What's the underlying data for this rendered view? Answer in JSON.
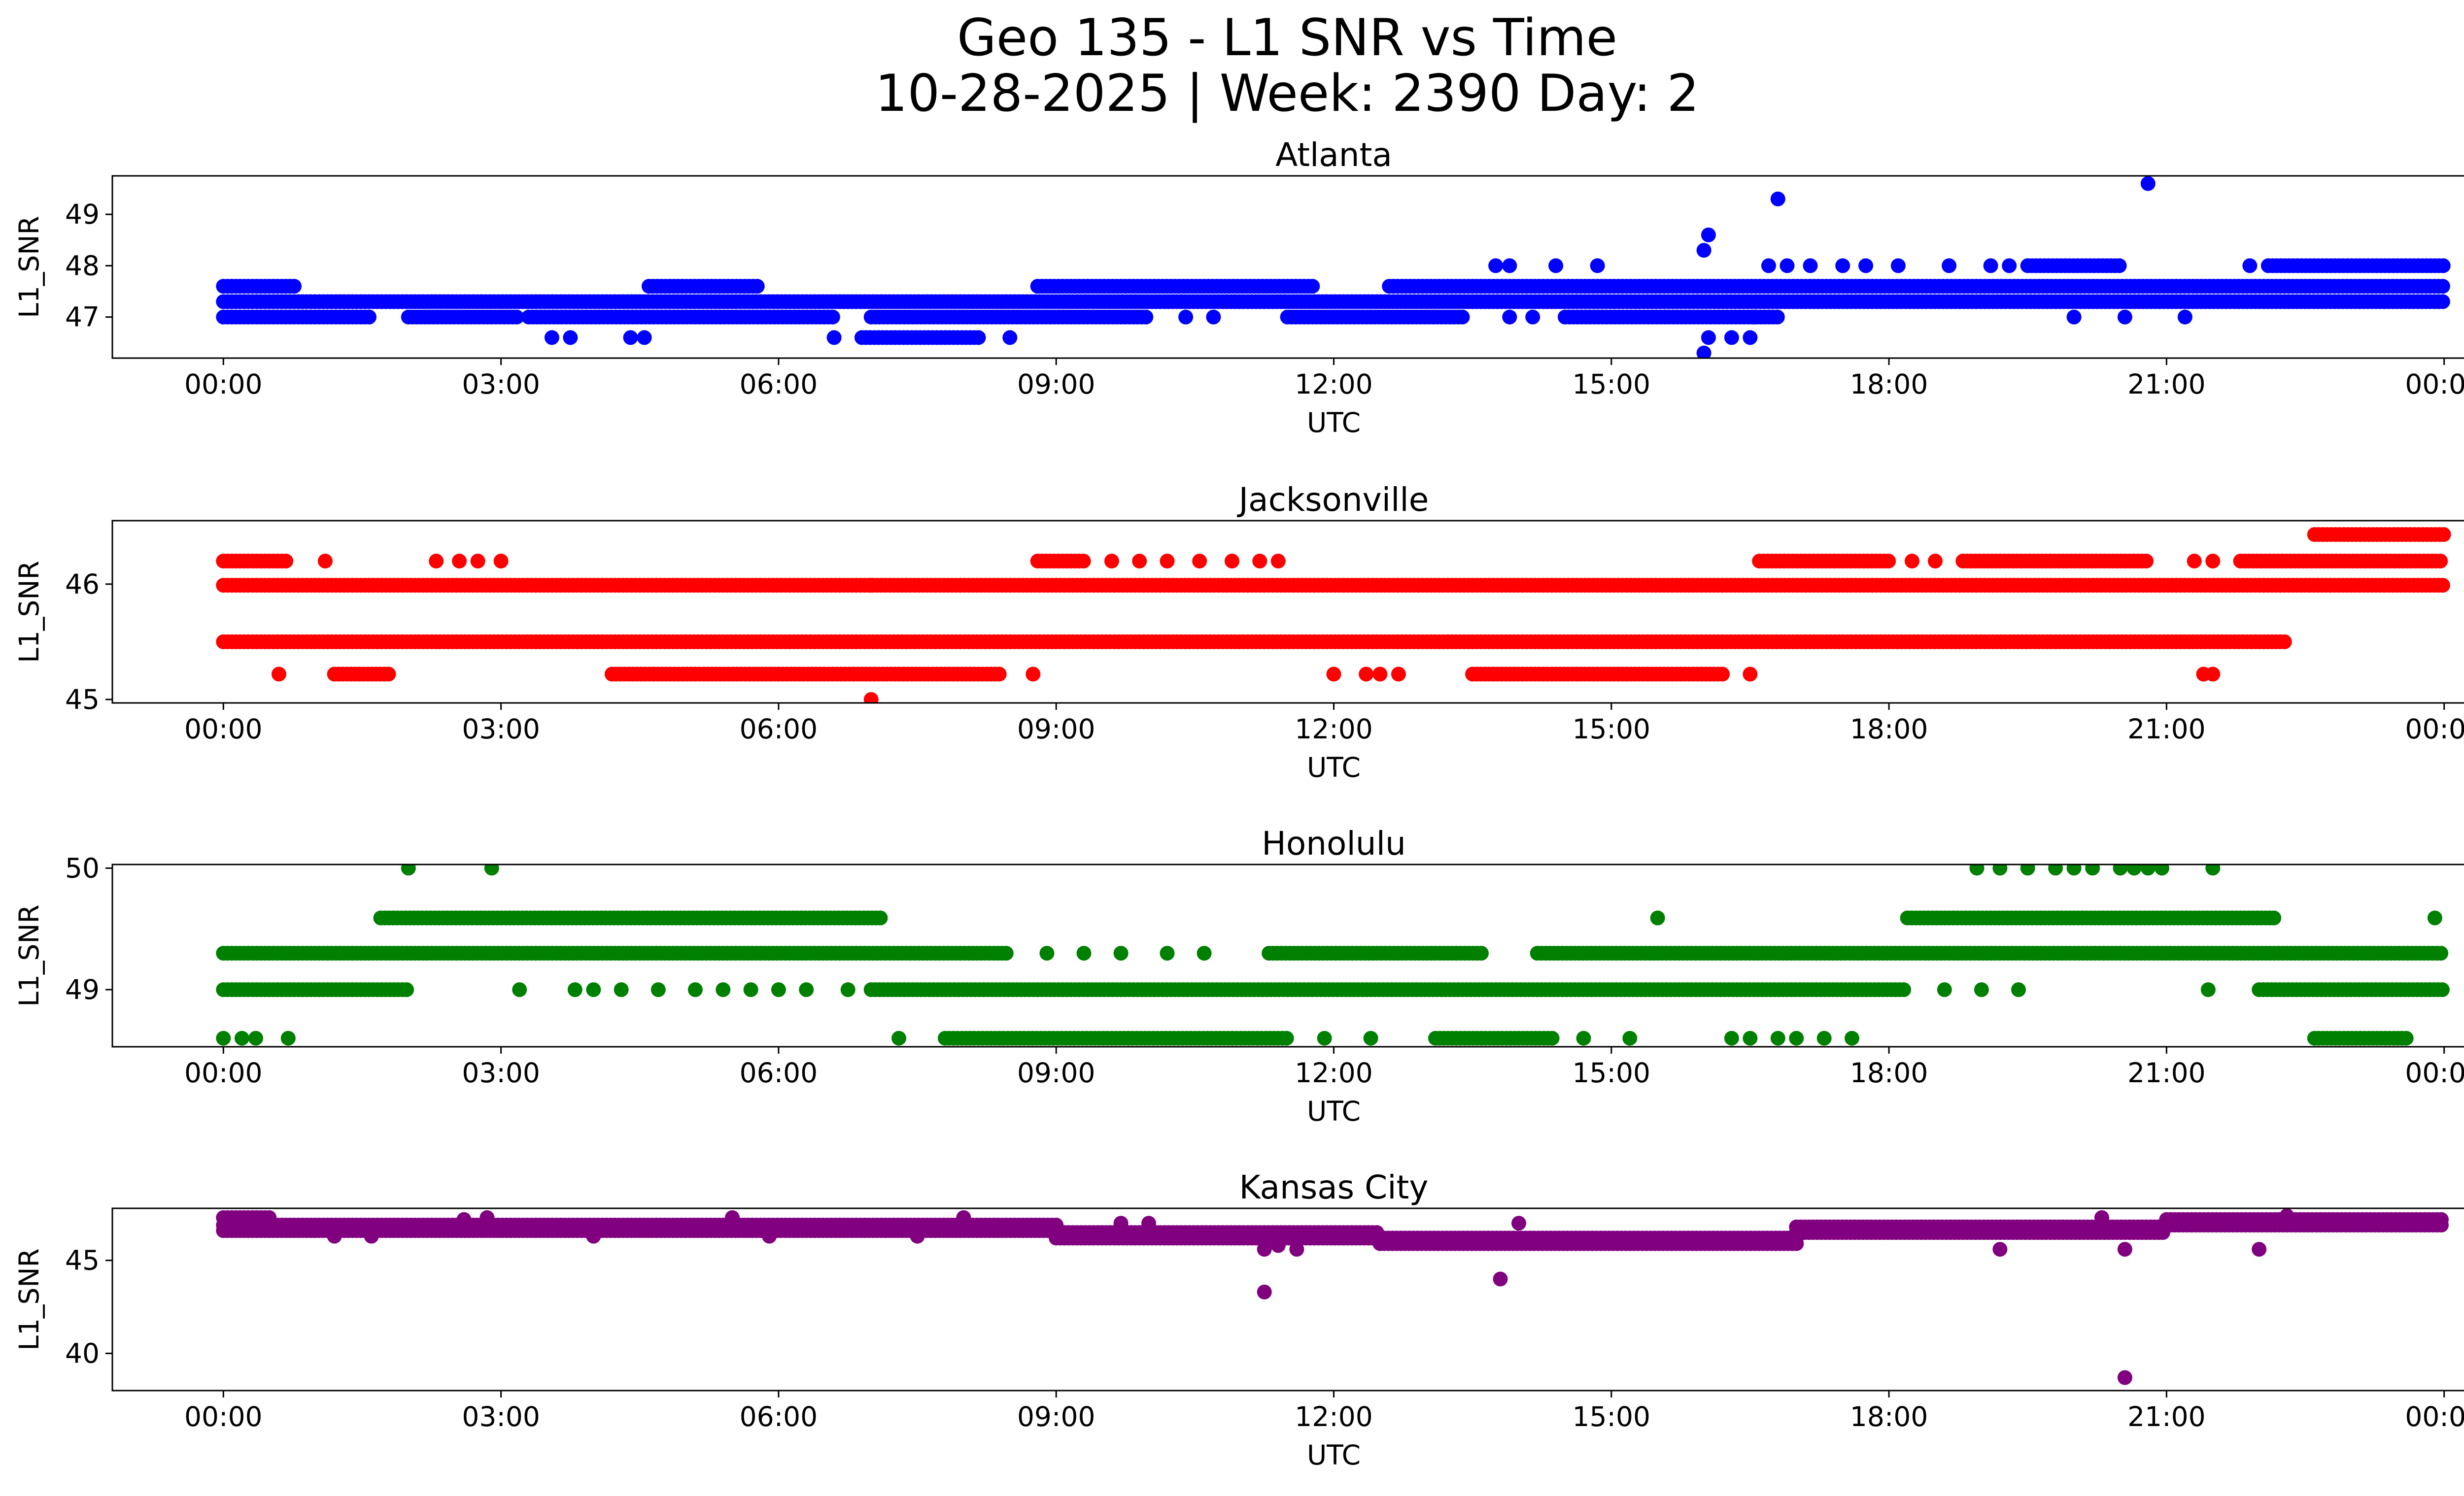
{
  "figure": {
    "title_line1": "Geo 135 - L1 SNR vs Time",
    "title_line2": "10-28-2025 | Week: 2390 Day: 2"
  },
  "chart_data": [
    {
      "type": "scatter",
      "title": "Atlanta",
      "xlabel": "UTC",
      "ylabel": "L1_SNR",
      "color": "#0000ff",
      "xlim_hours": [
        -1.2,
        25.2
      ],
      "ylim": [
        46.2,
        49.75
      ],
      "xticks": [
        {
          "h": 0,
          "label": "00:00"
        },
        {
          "h": 3,
          "label": "03:00"
        },
        {
          "h": 6,
          "label": "06:00"
        },
        {
          "h": 9,
          "label": "09:00"
        },
        {
          "h": 12,
          "label": "12:00"
        },
        {
          "h": 15,
          "label": "15:00"
        },
        {
          "h": 18,
          "label": "18:00"
        },
        {
          "h": 21,
          "label": "21:00"
        },
        {
          "h": 24,
          "label": "00:00"
        }
      ],
      "yticks": [
        {
          "v": 47,
          "label": "47"
        },
        {
          "v": 48,
          "label": "48"
        },
        {
          "v": 49,
          "label": "49"
        }
      ],
      "bands": [
        {
          "start": 0.0,
          "end": 24.0,
          "y": 47.3
        },
        {
          "start": 0.0,
          "end": 1.6,
          "y": 47.0
        },
        {
          "start": 2.0,
          "end": 3.2,
          "y": 47.0
        },
        {
          "start": 3.3,
          "end": 6.6,
          "y": 47.0
        },
        {
          "start": 7.0,
          "end": 10.0,
          "y": 47.0
        },
        {
          "start": 11.5,
          "end": 13.4,
          "y": 47.0
        },
        {
          "start": 14.5,
          "end": 16.8,
          "y": 47.0
        },
        {
          "start": 12.6,
          "end": 24.0,
          "y": 47.6
        },
        {
          "start": 8.8,
          "end": 11.8,
          "y": 47.6
        },
        {
          "start": 0.0,
          "end": 0.8,
          "y": 47.6
        },
        {
          "start": 4.6,
          "end": 5.8,
          "y": 47.6
        },
        {
          "start": 6.9,
          "end": 8.2,
          "y": 46.6
        },
        {
          "start": 19.5,
          "end": 20.5,
          "y": 48.0
        },
        {
          "start": 22.1,
          "end": 24.0,
          "y": 48.0
        }
      ],
      "points": [
        {
          "h": 3.55,
          "y": 46.6
        },
        {
          "h": 3.75,
          "y": 46.6
        },
        {
          "h": 4.4,
          "y": 46.6
        },
        {
          "h": 4.55,
          "y": 46.6
        },
        {
          "h": 6.6,
          "y": 46.6
        },
        {
          "h": 8.5,
          "y": 46.6
        },
        {
          "h": 16.0,
          "y": 46.3
        },
        {
          "h": 16.05,
          "y": 46.6
        },
        {
          "h": 16.3,
          "y": 46.6
        },
        {
          "h": 16.5,
          "y": 46.6
        },
        {
          "h": 16.55,
          "y": 47.0
        },
        {
          "h": 16.0,
          "y": 48.3
        },
        {
          "h": 16.05,
          "y": 48.6
        },
        {
          "h": 16.8,
          "y": 49.3
        },
        {
          "h": 20.8,
          "y": 49.6
        },
        {
          "h": 13.75,
          "y": 48.0
        },
        {
          "h": 13.9,
          "y": 48.0
        },
        {
          "h": 14.4,
          "y": 48.0
        },
        {
          "h": 14.85,
          "y": 48.0
        },
        {
          "h": 16.7,
          "y": 48.0
        },
        {
          "h": 16.9,
          "y": 48.0
        },
        {
          "h": 17.15,
          "y": 48.0
        },
        {
          "h": 17.5,
          "y": 48.0
        },
        {
          "h": 17.75,
          "y": 48.0
        },
        {
          "h": 18.1,
          "y": 48.0
        },
        {
          "h": 18.65,
          "y": 48.0
        },
        {
          "h": 19.1,
          "y": 48.0
        },
        {
          "h": 19.3,
          "y": 48.0
        },
        {
          "h": 21.9,
          "y": 48.0
        },
        {
          "h": 20.0,
          "y": 47.0
        },
        {
          "h": 20.55,
          "y": 47.0
        },
        {
          "h": 21.2,
          "y": 47.0
        },
        {
          "h": 10.4,
          "y": 47.0
        },
        {
          "h": 10.7,
          "y": 47.0
        },
        {
          "h": 13.9,
          "y": 47.0
        },
        {
          "h": 14.15,
          "y": 47.0
        }
      ]
    },
    {
      "type": "scatter",
      "title": "Jacksonville",
      "xlabel": "UTC",
      "ylabel": "L1_SNR",
      "color": "#ff0000",
      "xlim_hours": [
        -1.2,
        25.2
      ],
      "ylim": [
        44.97,
        46.55
      ],
      "xticks": [
        {
          "h": 0,
          "label": "00:00"
        },
        {
          "h": 3,
          "label": "03:00"
        },
        {
          "h": 6,
          "label": "06:00"
        },
        {
          "h": 9,
          "label": "09:00"
        },
        {
          "h": 12,
          "label": "12:00"
        },
        {
          "h": 15,
          "label": "15:00"
        },
        {
          "h": 18,
          "label": "18:00"
        },
        {
          "h": 21,
          "label": "21:00"
        },
        {
          "h": 24,
          "label": "00:00"
        }
      ],
      "yticks": [
        {
          "v": 45,
          "label": "45"
        },
        {
          "v": 46,
          "label": "46"
        }
      ],
      "bands": [
        {
          "start": 0.0,
          "end": 22.3,
          "y": 45.5
        },
        {
          "start": 0.0,
          "end": 24.0,
          "y": 45.99
        },
        {
          "start": 0.0,
          "end": 0.7,
          "y": 46.2
        },
        {
          "start": 1.2,
          "end": 1.8,
          "y": 45.22
        },
        {
          "start": 4.2,
          "end": 8.4,
          "y": 45.22
        },
        {
          "start": 13.5,
          "end": 16.2,
          "y": 45.22
        },
        {
          "start": 8.8,
          "end": 9.3,
          "y": 46.2
        },
        {
          "start": 16.6,
          "end": 18.0,
          "y": 46.2
        },
        {
          "start": 18.8,
          "end": 20.8,
          "y": 46.2
        },
        {
          "start": 21.8,
          "end": 24.0,
          "y": 46.2
        },
        {
          "start": 22.6,
          "end": 24.0,
          "y": 46.43
        }
      ],
      "points": [
        {
          "h": 0.6,
          "y": 45.22
        },
        {
          "h": 7.0,
          "y": 45.0
        },
        {
          "h": 7.0,
          "y": 45.99
        },
        {
          "h": 8.75,
          "y": 45.22
        },
        {
          "h": 12.0,
          "y": 45.22
        },
        {
          "h": 12.35,
          "y": 45.22
        },
        {
          "h": 12.5,
          "y": 45.22
        },
        {
          "h": 12.7,
          "y": 45.22
        },
        {
          "h": 16.5,
          "y": 45.22
        },
        {
          "h": 21.4,
          "y": 45.22
        },
        {
          "h": 21.5,
          "y": 45.22
        },
        {
          "h": 1.1,
          "y": 46.2
        },
        {
          "h": 2.3,
          "y": 46.2
        },
        {
          "h": 2.55,
          "y": 46.2
        },
        {
          "h": 2.75,
          "y": 46.2
        },
        {
          "h": 3.0,
          "y": 46.2
        },
        {
          "h": 9.6,
          "y": 46.2
        },
        {
          "h": 9.9,
          "y": 46.2
        },
        {
          "h": 10.2,
          "y": 46.2
        },
        {
          "h": 10.55,
          "y": 46.2
        },
        {
          "h": 10.9,
          "y": 46.2
        },
        {
          "h": 11.2,
          "y": 46.2
        },
        {
          "h": 11.4,
          "y": 46.2
        },
        {
          "h": 18.25,
          "y": 46.2
        },
        {
          "h": 18.5,
          "y": 46.2
        },
        {
          "h": 21.3,
          "y": 46.2
        },
        {
          "h": 21.5,
          "y": 46.2
        }
      ]
    },
    {
      "type": "scatter",
      "title": "Honolulu",
      "xlabel": "UTC",
      "ylabel": "L1_SNR",
      "color": "#008000",
      "xlim_hours": [
        -1.2,
        25.2
      ],
      "ylim": [
        48.53,
        50.03
      ],
      "xticks": [
        {
          "h": 0,
          "label": "00:00"
        },
        {
          "h": 3,
          "label": "03:00"
        },
        {
          "h": 6,
          "label": "06:00"
        },
        {
          "h": 9,
          "label": "09:00"
        },
        {
          "h": 12,
          "label": "12:00"
        },
        {
          "h": 15,
          "label": "15:00"
        },
        {
          "h": 18,
          "label": "18:00"
        },
        {
          "h": 21,
          "label": "21:00"
        },
        {
          "h": 24,
          "label": "00:00"
        }
      ],
      "yticks": [
        {
          "v": 49,
          "label": "49"
        },
        {
          "v": 50,
          "label": "50"
        }
      ],
      "bands": [
        {
          "start": 0.0,
          "end": 8.5,
          "y": 49.3
        },
        {
          "start": 11.3,
          "end": 13.6,
          "y": 49.3
        },
        {
          "start": 14.2,
          "end": 24.0,
          "y": 49.3
        },
        {
          "start": 0.0,
          "end": 2.0,
          "y": 49.0
        },
        {
          "start": 7.0,
          "end": 18.2,
          "y": 49.0
        },
        {
          "start": 22.0,
          "end": 24.0,
          "y": 49.0
        },
        {
          "start": 1.7,
          "end": 7.1,
          "y": 49.59
        },
        {
          "start": 18.2,
          "end": 22.2,
          "y": 49.59
        },
        {
          "start": 7.8,
          "end": 11.5,
          "y": 48.6
        },
        {
          "start": 13.1,
          "end": 14.4,
          "y": 48.6
        },
        {
          "start": 22.6,
          "end": 23.6,
          "y": 48.6
        }
      ],
      "points": [
        {
          "h": 0.0,
          "y": 48.6
        },
        {
          "h": 0.2,
          "y": 48.6
        },
        {
          "h": 0.35,
          "y": 48.6
        },
        {
          "h": 0.7,
          "y": 48.6
        },
        {
          "h": 2.0,
          "y": 50.0
        },
        {
          "h": 2.9,
          "y": 50.0
        },
        {
          "h": 3.2,
          "y": 49.0
        },
        {
          "h": 3.8,
          "y": 49.0
        },
        {
          "h": 4.0,
          "y": 49.0
        },
        {
          "h": 4.3,
          "y": 49.0
        },
        {
          "h": 4.7,
          "y": 49.0
        },
        {
          "h": 5.1,
          "y": 49.0
        },
        {
          "h": 5.4,
          "y": 49.0
        },
        {
          "h": 5.7,
          "y": 49.0
        },
        {
          "h": 6.0,
          "y": 49.0
        },
        {
          "h": 6.3,
          "y": 49.0
        },
        {
          "h": 6.75,
          "y": 49.0
        },
        {
          "h": 7.3,
          "y": 48.6
        },
        {
          "h": 8.9,
          "y": 49.3
        },
        {
          "h": 9.3,
          "y": 49.3
        },
        {
          "h": 9.7,
          "y": 49.3
        },
        {
          "h": 10.2,
          "y": 49.3
        },
        {
          "h": 10.6,
          "y": 49.3
        },
        {
          "h": 11.9,
          "y": 48.6
        },
        {
          "h": 12.4,
          "y": 48.6
        },
        {
          "h": 14.7,
          "y": 48.6
        },
        {
          "h": 15.2,
          "y": 48.6
        },
        {
          "h": 15.5,
          "y": 49.59
        },
        {
          "h": 16.3,
          "y": 48.6
        },
        {
          "h": 16.5,
          "y": 48.6
        },
        {
          "h": 16.8,
          "y": 48.6
        },
        {
          "h": 17.0,
          "y": 48.6
        },
        {
          "h": 17.3,
          "y": 48.6
        },
        {
          "h": 17.6,
          "y": 48.6
        },
        {
          "h": 18.6,
          "y": 49.0
        },
        {
          "h": 19.0,
          "y": 49.0
        },
        {
          "h": 19.4,
          "y": 49.0
        },
        {
          "h": 18.95,
          "y": 50.0
        },
        {
          "h": 19.2,
          "y": 50.0
        },
        {
          "h": 19.5,
          "y": 50.0
        },
        {
          "h": 19.8,
          "y": 50.0
        },
        {
          "h": 20.0,
          "y": 50.0
        },
        {
          "h": 20.2,
          "y": 50.0
        },
        {
          "h": 20.5,
          "y": 50.0
        },
        {
          "h": 20.65,
          "y": 50.0
        },
        {
          "h": 20.8,
          "y": 50.0
        },
        {
          "h": 20.95,
          "y": 50.0
        },
        {
          "h": 21.5,
          "y": 50.0
        },
        {
          "h": 21.45,
          "y": 49.0
        },
        {
          "h": 23.9,
          "y": 49.59
        }
      ]
    },
    {
      "type": "scatter",
      "title": "Kansas City",
      "xlabel": "UTC",
      "ylabel": "L1_SNR",
      "color": "#800080",
      "xlim_hours": [
        -1.2,
        25.2
      ],
      "ylim": [
        38.0,
        47.8
      ],
      "xticks": [
        {
          "h": 0,
          "label": "00:00"
        },
        {
          "h": 3,
          "label": "03:00"
        },
        {
          "h": 6,
          "label": "06:00"
        },
        {
          "h": 9,
          "label": "09:00"
        },
        {
          "h": 12,
          "label": "12:00"
        },
        {
          "h": 15,
          "label": "15:00"
        },
        {
          "h": 18,
          "label": "18:00"
        },
        {
          "h": 21,
          "label": "21:00"
        },
        {
          "h": 24,
          "label": "00:00"
        }
      ],
      "yticks": [
        {
          "v": 40,
          "label": "40"
        },
        {
          "v": 45,
          "label": "45"
        }
      ],
      "bands": [
        {
          "start": 0.0,
          "end": 9.0,
          "y": 46.9
        },
        {
          "start": 0.0,
          "end": 9.0,
          "y": 46.6
        },
        {
          "start": 9.0,
          "end": 12.5,
          "y": 46.5
        },
        {
          "start": 9.0,
          "end": 12.5,
          "y": 46.2
        },
        {
          "start": 12.5,
          "end": 17.0,
          "y": 46.2
        },
        {
          "start": 12.5,
          "end": 17.0,
          "y": 45.9
        },
        {
          "start": 17.0,
          "end": 21.0,
          "y": 46.5
        },
        {
          "start": 17.0,
          "end": 21.0,
          "y": 46.8
        },
        {
          "start": 21.0,
          "end": 24.0,
          "y": 46.9
        },
        {
          "start": 21.0,
          "end": 24.0,
          "y": 47.2
        },
        {
          "start": 0.0,
          "end": 0.5,
          "y": 47.3
        }
      ],
      "points": [
        {
          "h": 11.25,
          "y": 43.3
        },
        {
          "h": 13.8,
          "y": 44.0
        },
        {
          "h": 20.55,
          "y": 38.7
        },
        {
          "h": 19.2,
          "y": 45.6
        },
        {
          "h": 20.55,
          "y": 45.6
        },
        {
          "h": 22.0,
          "y": 45.6
        },
        {
          "h": 11.6,
          "y": 45.6
        },
        {
          "h": 11.25,
          "y": 45.6
        },
        {
          "h": 11.4,
          "y": 45.8
        },
        {
          "h": 14.0,
          "y": 47.0
        },
        {
          "h": 2.6,
          "y": 47.2
        },
        {
          "h": 2.85,
          "y": 47.3
        },
        {
          "h": 5.5,
          "y": 47.3
        },
        {
          "h": 8.0,
          "y": 47.3
        },
        {
          "h": 9.7,
          "y": 47.0
        },
        {
          "h": 10.0,
          "y": 47.0
        },
        {
          "h": 20.3,
          "y": 47.3
        },
        {
          "h": 22.3,
          "y": 47.4
        },
        {
          "h": 1.2,
          "y": 46.3
        },
        {
          "h": 1.6,
          "y": 46.3
        },
        {
          "h": 4.0,
          "y": 46.3
        },
        {
          "h": 5.9,
          "y": 46.3
        },
        {
          "h": 7.5,
          "y": 46.3
        }
      ]
    }
  ]
}
